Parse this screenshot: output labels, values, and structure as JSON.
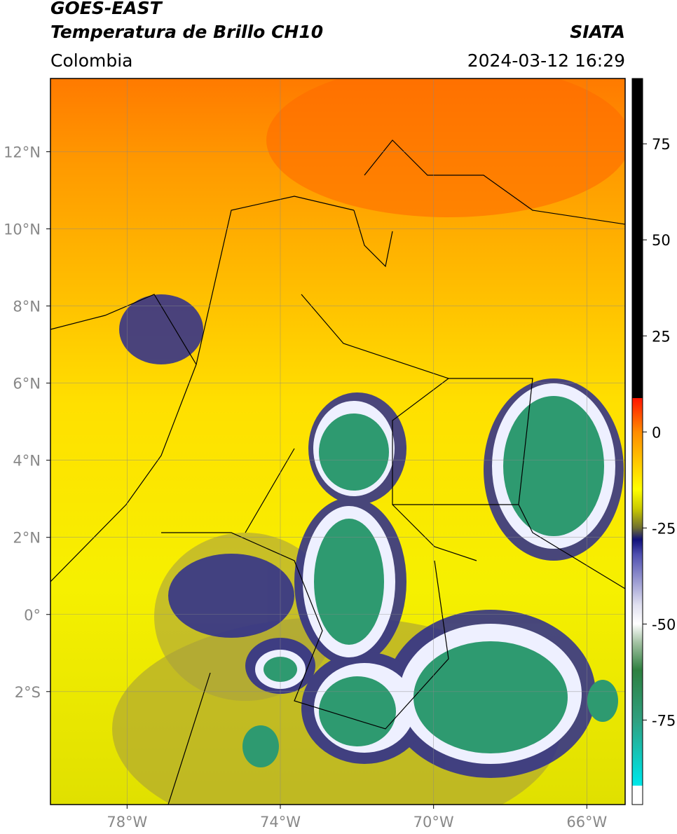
{
  "header": {
    "title_line1": "GOES-EAST",
    "title_line2": "Temperatura de Brillo CH10",
    "agency": "SIATA",
    "region": "Colombia",
    "datetime": "2024-03-12 16:29"
  },
  "map": {
    "xlim": [
      -80,
      -65
    ],
    "ylim": [
      -4.93,
      13.9
    ],
    "xticks": [
      {
        "value": -78,
        "label": "78°W"
      },
      {
        "value": -74,
        "label": "74°W"
      },
      {
        "value": -70,
        "label": "70°W"
      },
      {
        "value": -66,
        "label": "66°W"
      }
    ],
    "yticks": [
      {
        "value": 12,
        "label": "12°N"
      },
      {
        "value": 10,
        "label": "10°N"
      },
      {
        "value": 8,
        "label": "8°N"
      },
      {
        "value": 6,
        "label": "6°N"
      },
      {
        "value": 4,
        "label": "4°N"
      },
      {
        "value": 2,
        "label": "2°N"
      },
      {
        "value": 0,
        "label": "0°"
      },
      {
        "value": -2,
        "label": "2°S"
      }
    ]
  },
  "colorbar": {
    "lim": [
      -97,
      92
    ],
    "ticks": [
      75,
      50,
      25,
      0,
      -25,
      -50,
      -75
    ]
  }
}
